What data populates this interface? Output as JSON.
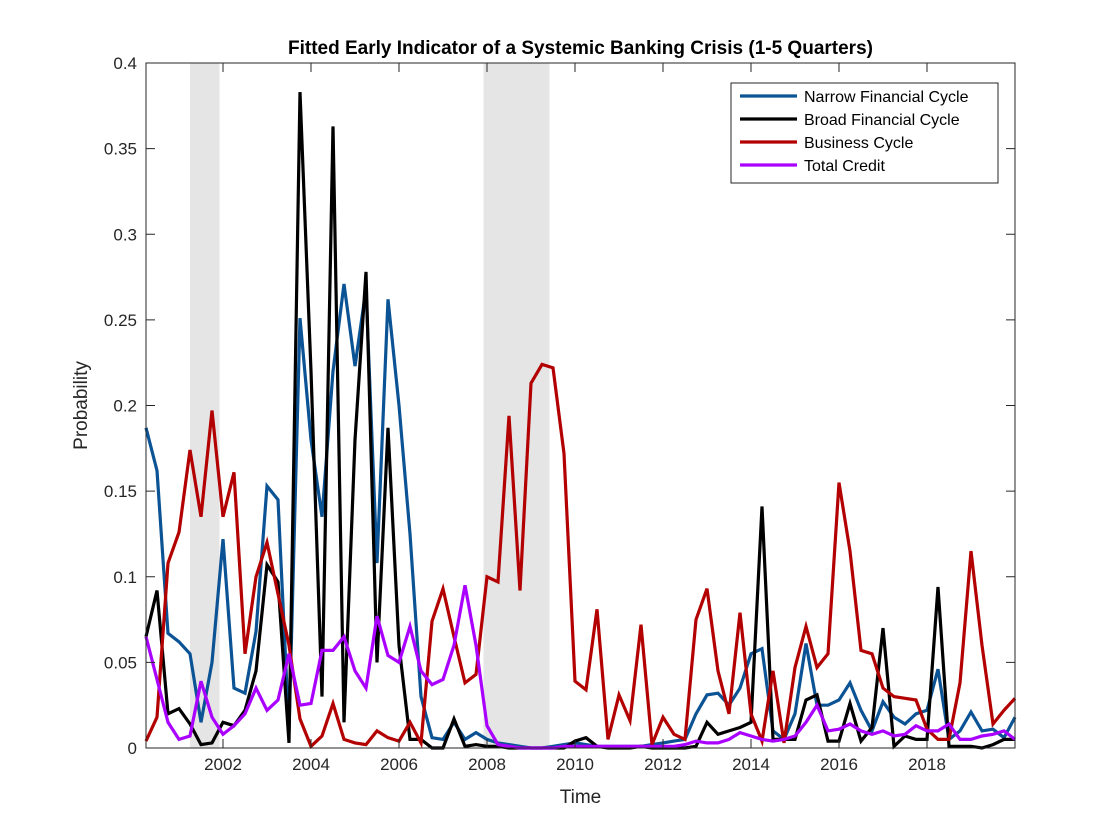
{
  "chart_data": {
    "type": "line",
    "title": "Fitted Early Indicator of a Systemic Banking Crisis (1-5 Quarters)",
    "xlabel": "Time",
    "ylabel": "Probability",
    "xlim": [
      2000.25,
      2020.0
    ],
    "ylim": [
      0,
      0.4
    ],
    "x_ticks": [
      2002,
      2004,
      2006,
      2008,
      2010,
      2012,
      2014,
      2016,
      2018
    ],
    "x_tick_labels": [
      "2002",
      "2004",
      "2006",
      "2008",
      "2010",
      "2012",
      "2014",
      "2016",
      "2018"
    ],
    "y_ticks": [
      0,
      0.05,
      0.1,
      0.15,
      0.2,
      0.25,
      0.3,
      0.35,
      0.4
    ],
    "y_tick_labels": [
      "0",
      "0.05",
      "0.1",
      "0.15",
      "0.2",
      "0.25",
      "0.3",
      "0.35",
      "0.4"
    ],
    "grid": false,
    "legend_position": "top-right",
    "shaded_periods": [
      [
        2001.25,
        2001.92
      ],
      [
        2007.92,
        2009.42
      ]
    ],
    "shade_color": "#e5e5e5",
    "x": [
      2000.25,
      2000.5,
      2000.75,
      2001.0,
      2001.25,
      2001.5,
      2001.75,
      2002.0,
      2002.25,
      2002.5,
      2002.75,
      2003.0,
      2003.25,
      2003.5,
      2003.75,
      2004.0,
      2004.25,
      2004.5,
      2004.75,
      2005.0,
      2005.25,
      2005.5,
      2005.75,
      2006.0,
      2006.25,
      2006.5,
      2006.75,
      2007.0,
      2007.25,
      2007.5,
      2007.75,
      2008.0,
      2008.25,
      2008.5,
      2008.75,
      2009.0,
      2009.25,
      2009.5,
      2009.75,
      2010.0,
      2010.25,
      2010.5,
      2010.75,
      2011.0,
      2011.25,
      2011.5,
      2011.75,
      2012.0,
      2012.25,
      2012.5,
      2012.75,
      2013.0,
      2013.25,
      2013.5,
      2013.75,
      2014.0,
      2014.25,
      2014.5,
      2014.75,
      2015.0,
      2015.25,
      2015.5,
      2015.75,
      2016.0,
      2016.25,
      2016.5,
      2016.75,
      2017.0,
      2017.25,
      2017.5,
      2017.75,
      2018.0,
      2018.25,
      2018.5,
      2018.75,
      2019.0,
      2019.25,
      2019.5,
      2019.75,
      2020.0
    ],
    "series": [
      {
        "name": "Narrow Financial Cycle",
        "color": "#0b5394",
        "values": [
          0.187,
          0.162,
          0.067,
          0.062,
          0.055,
          0.015,
          0.05,
          0.122,
          0.035,
          0.032,
          0.068,
          0.153,
          0.145,
          0.01,
          0.251,
          0.18,
          0.135,
          0.22,
          0.271,
          0.223,
          0.268,
          0.108,
          0.262,
          0.2,
          0.125,
          0.03,
          0.006,
          0.005,
          0.015,
          0.005,
          0.009,
          0.005,
          0.003,
          0.002,
          0.001,
          0.0,
          0.0,
          0.001,
          0.002,
          0.003,
          0.002,
          0.001,
          0.001,
          0.001,
          0.001,
          0.001,
          0.002,
          0.003,
          0.004,
          0.005,
          0.02,
          0.031,
          0.032,
          0.025,
          0.035,
          0.055,
          0.058,
          0.01,
          0.005,
          0.02,
          0.061,
          0.025,
          0.025,
          0.028,
          0.038,
          0.022,
          0.01,
          0.027,
          0.018,
          0.014,
          0.02,
          0.022,
          0.046,
          0.005,
          0.01,
          0.021,
          0.01,
          0.011,
          0.006,
          0.018
        ]
      },
      {
        "name": "Broad Financial Cycle",
        "color": "#000000",
        "values": [
          0.065,
          0.092,
          0.02,
          0.023,
          0.014,
          0.002,
          0.003,
          0.015,
          0.013,
          0.022,
          0.045,
          0.107,
          0.097,
          0.003,
          0.383,
          0.22,
          0.03,
          0.363,
          0.015,
          0.18,
          0.278,
          0.05,
          0.187,
          0.06,
          0.005,
          0.005,
          0.0,
          0.0,
          0.017,
          0.001,
          0.002,
          0.001,
          0.001,
          0.0,
          0.0,
          0.0,
          0.0,
          0.0,
          0.0,
          0.004,
          0.006,
          0.001,
          0.0,
          0.0,
          0.0,
          0.001,
          0.0,
          0.0,
          0.0,
          0.0,
          0.001,
          0.015,
          0.008,
          0.01,
          0.012,
          0.015,
          0.141,
          0.005,
          0.005,
          0.005,
          0.028,
          0.031,
          0.004,
          0.004,
          0.026,
          0.004,
          0.012,
          0.07,
          0.001,
          0.007,
          0.005,
          0.005,
          0.094,
          0.001,
          0.001,
          0.001,
          0.0,
          0.002,
          0.005,
          0.005
        ]
      },
      {
        "name": "Business Cycle",
        "color": "#b30000",
        "values": [
          0.004,
          0.018,
          0.108,
          0.126,
          0.174,
          0.135,
          0.197,
          0.135,
          0.161,
          0.055,
          0.1,
          0.12,
          0.09,
          0.06,
          0.017,
          0.001,
          0.007,
          0.026,
          0.005,
          0.003,
          0.002,
          0.01,
          0.006,
          0.004,
          0.015,
          0.003,
          0.074,
          0.093,
          0.065,
          0.038,
          0.043,
          0.1,
          0.097,
          0.194,
          0.092,
          0.213,
          0.224,
          0.222,
          0.172,
          0.039,
          0.034,
          0.081,
          0.005,
          0.031,
          0.016,
          0.072,
          0.002,
          0.018,
          0.008,
          0.005,
          0.075,
          0.093,
          0.045,
          0.02,
          0.079,
          0.02,
          0.004,
          0.045,
          0.003,
          0.047,
          0.071,
          0.047,
          0.055,
          0.155,
          0.115,
          0.057,
          0.055,
          0.035,
          0.03,
          0.029,
          0.028,
          0.011,
          0.005,
          0.005,
          0.038,
          0.115,
          0.06,
          0.014,
          0.022,
          0.029
        ]
      },
      {
        "name": "Total Credit",
        "color": "#aa00ff",
        "values": [
          0.065,
          0.04,
          0.015,
          0.005,
          0.007,
          0.039,
          0.018,
          0.008,
          0.013,
          0.02,
          0.035,
          0.022,
          0.028,
          0.055,
          0.025,
          0.026,
          0.057,
          0.057,
          0.065,
          0.045,
          0.035,
          0.077,
          0.054,
          0.05,
          0.071,
          0.045,
          0.037,
          0.04,
          0.06,
          0.095,
          0.06,
          0.013,
          0.002,
          0.001,
          0.0,
          0.0,
          0.0,
          0.0,
          0.001,
          0.001,
          0.001,
          0.001,
          0.001,
          0.001,
          0.001,
          0.001,
          0.001,
          0.001,
          0.001,
          0.002,
          0.004,
          0.003,
          0.003,
          0.005,
          0.009,
          0.007,
          0.005,
          0.004,
          0.005,
          0.007,
          0.015,
          0.025,
          0.01,
          0.011,
          0.014,
          0.01,
          0.008,
          0.01,
          0.007,
          0.008,
          0.013,
          0.01,
          0.01,
          0.014,
          0.005,
          0.005,
          0.007,
          0.008,
          0.01,
          0.005
        ]
      }
    ]
  }
}
